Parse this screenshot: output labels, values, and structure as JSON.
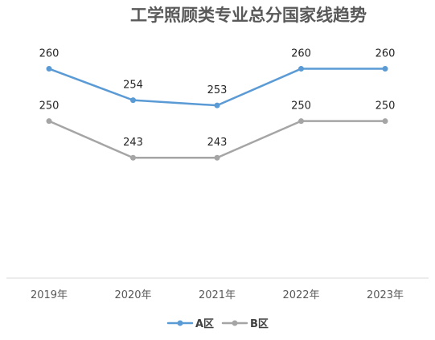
{
  "chart_data": {
    "type": "line",
    "title": "工学照顾类专业总分国家线趋势",
    "categories": [
      "2019年",
      "2020年",
      "2021年",
      "2022年",
      "2023年"
    ],
    "series": [
      {
        "name": "A区",
        "values": [
          260,
          254,
          253,
          260,
          260
        ],
        "color": "#5b9bd5"
      },
      {
        "name": "B区",
        "values": [
          250,
          243,
          243,
          250,
          250
        ],
        "color": "#a5a5a5"
      }
    ],
    "xlabel": "",
    "ylabel": "",
    "ylim": [
      220,
      265
    ],
    "grid": false,
    "legend_position": "bottom",
    "data_labels": true
  }
}
